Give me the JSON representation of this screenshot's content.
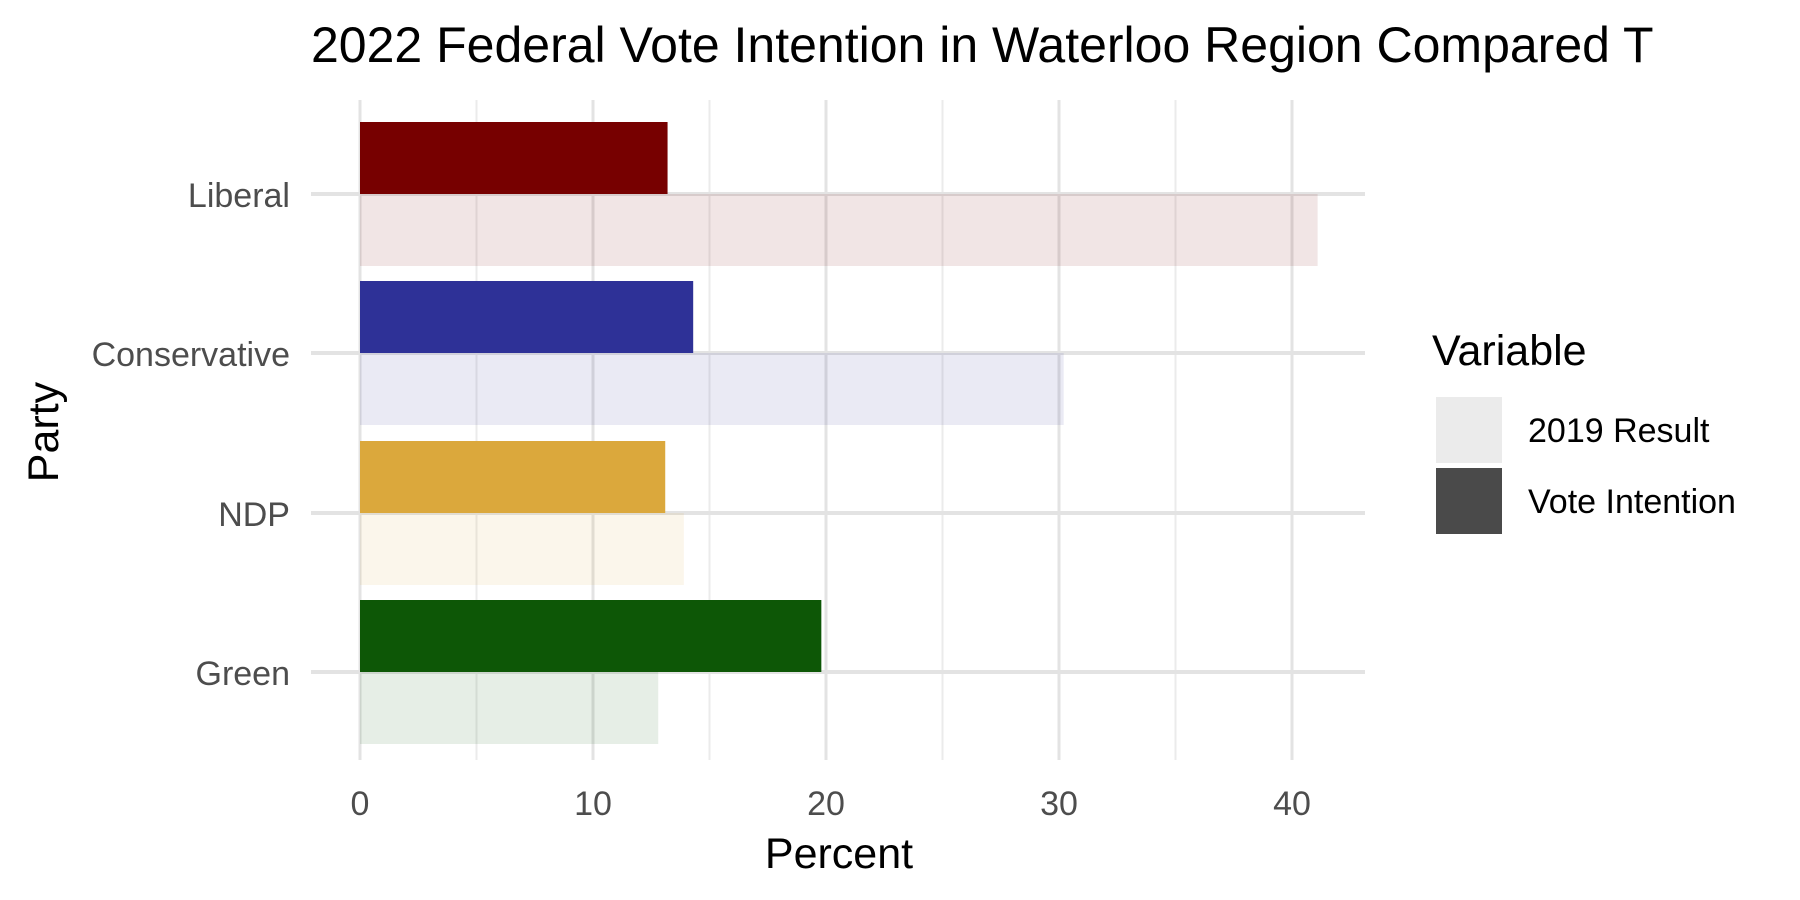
{
  "chart_data": {
    "type": "bar",
    "orientation": "horizontal",
    "title": "2022 Federal Vote Intention in  Waterloo Region Compared T",
    "xlabel": "Percent",
    "ylabel": "Party",
    "xlim": [
      0,
      43
    ],
    "x_ticks": [
      0,
      10,
      20,
      30,
      40
    ],
    "grid": true,
    "legend_position": "right",
    "legend_title": "Variable",
    "categories": [
      "Liberal",
      "Conservative",
      "NDP",
      "Green"
    ],
    "category_colors": [
      "#770000",
      "#2e3197",
      "#dba83c",
      "#0d5706"
    ],
    "series": [
      {
        "name": "Vote Intention",
        "values": [
          13.2,
          14.3,
          13.1,
          19.8
        ],
        "legend_color": "#4a4a4a"
      },
      {
        "name": "2019 Result",
        "values": [
          41.1,
          30.2,
          13.9,
          12.8
        ],
        "legend_color": "#ebebeb",
        "opacity": 0.1
      }
    ]
  }
}
